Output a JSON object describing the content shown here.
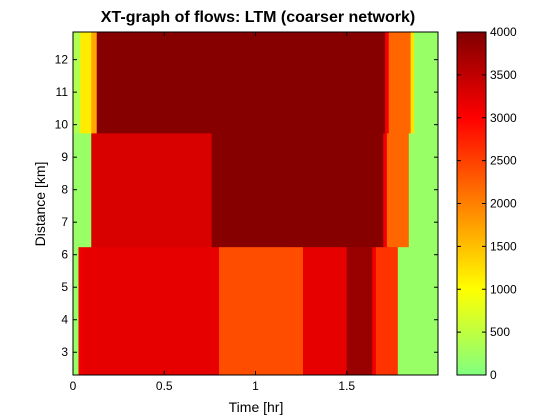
{
  "chart_data": {
    "type": "heatmap",
    "title": "XT-graph of flows: LTM (coarser network)",
    "xlabel": "Time [hr]",
    "ylabel": "Distance [km]",
    "xlim": [
      0,
      2.0
    ],
    "ylim": [
      2.3,
      12.85
    ],
    "xticks": [
      0,
      0.5,
      1,
      1.5
    ],
    "xtick_labels": [
      "0",
      "0.5",
      "1",
      "1.5"
    ],
    "yticks": [
      3,
      4,
      5,
      6,
      7,
      8,
      9,
      10,
      11,
      12
    ],
    "ytick_labels": [
      "3",
      "4",
      "5",
      "6",
      "7",
      "8",
      "9",
      "10",
      "11",
      "12"
    ],
    "colorbar": {
      "range": [
        0,
        4000
      ],
      "ticks": [
        0,
        500,
        1000,
        1500,
        2000,
        2500,
        3000,
        3500,
        4000
      ],
      "tick_labels": [
        "0",
        "500",
        "1000",
        "1500",
        "2000",
        "2500",
        "3000",
        "3500",
        "4000"
      ],
      "colormap": [
        [
          0,
          "#80ff80"
        ],
        [
          0.25,
          "#ffff00"
        ],
        [
          0.5,
          "#ff8000"
        ],
        [
          0.75,
          "#ff0000"
        ],
        [
          1,
          "#800000"
        ]
      ]
    },
    "segments": [
      {
        "distance_range": [
          2.3,
          6.25
        ],
        "cells": [
          {
            "t": [
              0,
              0.03
            ],
            "flow": 200
          },
          {
            "t": [
              0.03,
              0.05
            ],
            "flow": 3100
          },
          {
            "t": [
              0.05,
              0.8
            ],
            "flow": 3200
          },
          {
            "t": [
              0.8,
              1.26
            ],
            "flow": 2400
          },
          {
            "t": [
              1.26,
              1.5
            ],
            "flow": 3200
          },
          {
            "t": [
              1.5,
              1.64
            ],
            "flow": 3800
          },
          {
            "t": [
              1.64,
              1.66
            ],
            "flow": 3100
          },
          {
            "t": [
              1.66,
              1.78
            ],
            "flow": 2600
          },
          {
            "t": [
              1.78,
              2.0
            ],
            "flow": 200
          }
        ]
      },
      {
        "distance_range": [
          6.25,
          9.75
        ],
        "cells": [
          {
            "t": [
              0,
              0.1
            ],
            "flow": 200
          },
          {
            "t": [
              0.1,
              0.76
            ],
            "flow": 3300
          },
          {
            "t": [
              0.76,
              1.7
            ],
            "flow": 3950
          },
          {
            "t": [
              1.7,
              1.72
            ],
            "flow": 3100
          },
          {
            "t": [
              1.72,
              1.84
            ],
            "flow": 2200
          },
          {
            "t": [
              1.84,
              2.0
            ],
            "flow": 200
          }
        ]
      },
      {
        "distance_range": [
          9.75,
          12.85
        ],
        "cells": [
          {
            "t": [
              0,
              0.04
            ],
            "flow": 400
          },
          {
            "t": [
              0.04,
              0.1
            ],
            "flow": 1150
          },
          {
            "t": [
              0.1,
              0.13
            ],
            "flow": 1700
          },
          {
            "t": [
              0.13,
              1.71
            ],
            "flow": 3950
          },
          {
            "t": [
              1.71,
              1.73
            ],
            "flow": 3100
          },
          {
            "t": [
              1.73,
              1.85
            ],
            "flow": 2200
          },
          {
            "t": [
              1.85,
              1.87
            ],
            "flow": 1200
          },
          {
            "t": [
              1.87,
              2.0
            ],
            "flow": 200
          }
        ]
      }
    ]
  }
}
